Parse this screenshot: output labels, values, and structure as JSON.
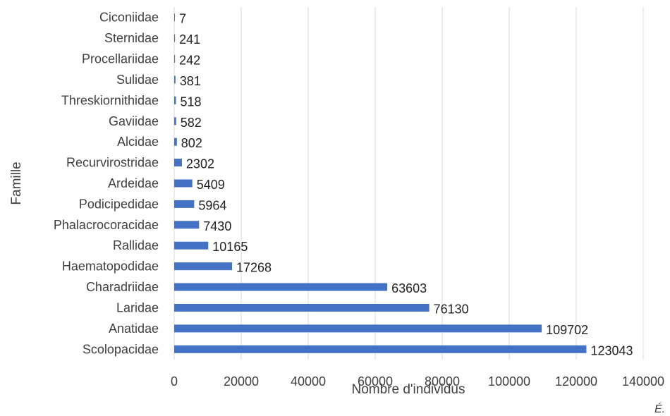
{
  "chart_data": {
    "type": "bar",
    "orientation": "horizontal",
    "title": "",
    "xlabel": "Nombre d'individus",
    "ylabel": "Famille",
    "xlim": [
      0,
      140000
    ],
    "x_ticks": [
      "0",
      "20000",
      "40000",
      "60000",
      "80000",
      "100000",
      "120000",
      "140000"
    ],
    "grid": "vertical",
    "legend": "none",
    "bar_color": "#4472C4",
    "categories": [
      "Ciconiidae",
      "Sternidae",
      "Procellariidae",
      "Sulidae",
      "Threskiornithidae",
      "Gaviidae",
      "Alcidae",
      "Recurvirostridae",
      "Ardeidae",
      "Podicipedidae",
      "Phalacrocoracidae",
      "Rallidae",
      "Haematopodidae",
      "Charadriidae",
      "Laridae",
      "Anatidae",
      "Scolopacidae"
    ],
    "values": [
      7,
      241,
      242,
      381,
      518,
      582,
      802,
      2302,
      5409,
      5964,
      7430,
      10165,
      17268,
      63603,
      76130,
      109702,
      123043
    ],
    "data_labels": [
      "7",
      "241",
      "242",
      "381",
      "518",
      "582",
      "802",
      "2302",
      "5409",
      "5964",
      "7430",
      "10165",
      "17268",
      "63603",
      "76130",
      "109702",
      "123043"
    ]
  },
  "corner_text": "É."
}
